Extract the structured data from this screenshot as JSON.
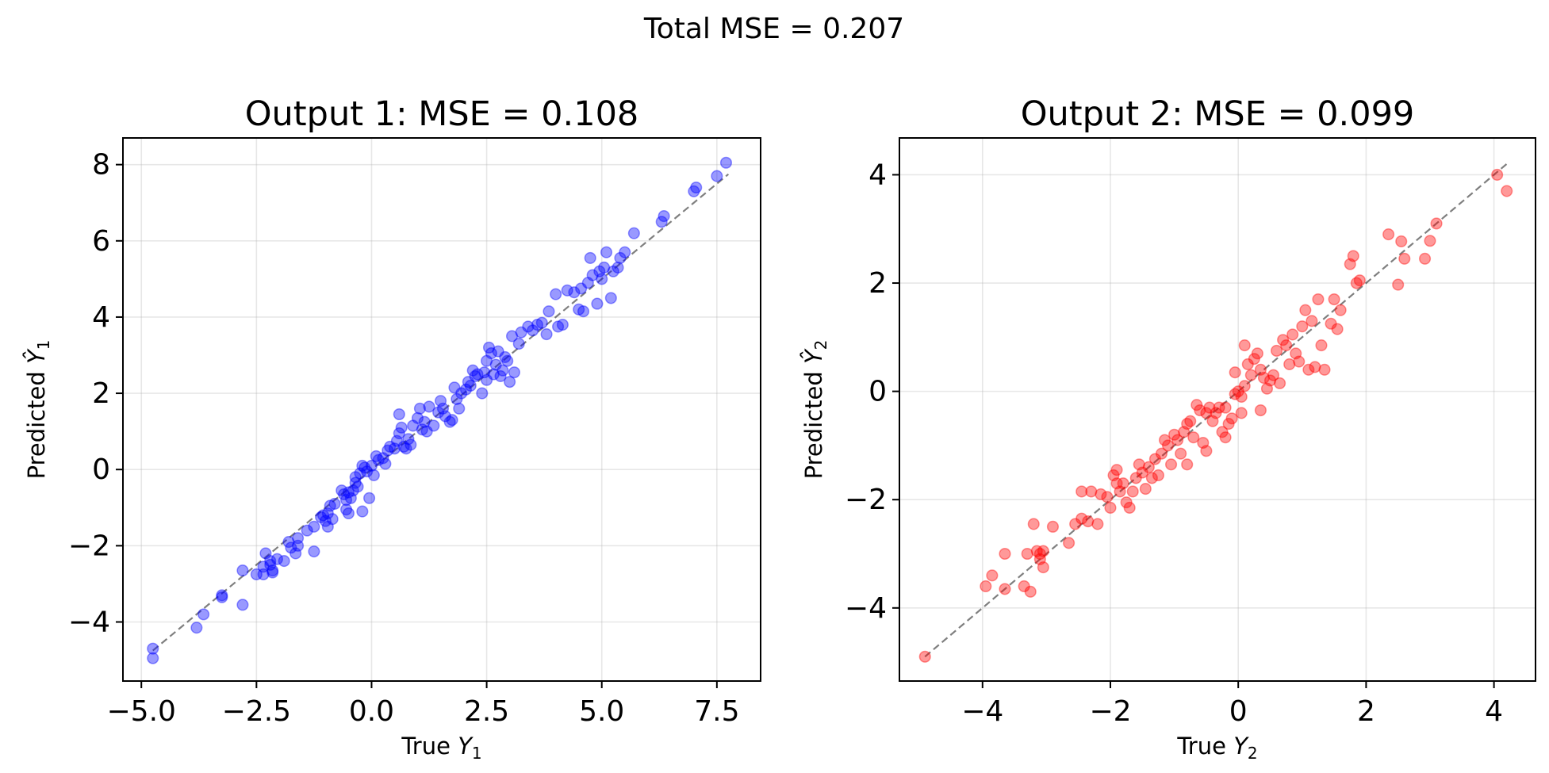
{
  "suptitle": "Total MSE = 0.207",
  "chart_data": [
    {
      "type": "scatter",
      "title": "Output 1: MSE = 0.108",
      "xlabel": "True Y1",
      "xlabel_main": "True ",
      "xlabel_var": "Y",
      "xlabel_sub": "1",
      "ylabel": "Predicted Ŷ1",
      "ylabel_main": "Predicted ",
      "ylabel_var": "Ŷ",
      "ylabel_sub": "1",
      "xlim": [
        -5.4,
        8.45
      ],
      "ylim": [
        -5.55,
        8.7
      ],
      "xticks": [
        -5.0,
        -2.5,
        0.0,
        2.5,
        5.0,
        7.5
      ],
      "xtick_labels": [
        "−5.0",
        "−2.5",
        "0.0",
        "2.5",
        "5.0",
        "7.5"
      ],
      "yticks": [
        -4,
        -2,
        0,
        2,
        4,
        6,
        8
      ],
      "ytick_labels": [
        "−4",
        "−2",
        "0",
        "2",
        "4",
        "6",
        "8"
      ],
      "grid": true,
      "color": "#0000ff",
      "alpha": 0.4,
      "reference_line": {
        "style": "dashed",
        "color": "#808080",
        "from": [
          -4.75,
          -4.75
        ],
        "to": [
          7.75,
          7.75
        ]
      },
      "points": [
        [
          -4.75,
          -4.7
        ],
        [
          -4.75,
          -4.95
        ],
        [
          -3.8,
          -4.15
        ],
        [
          -3.65,
          -3.8
        ],
        [
          -3.25,
          -3.35
        ],
        [
          -3.25,
          -3.3
        ],
        [
          -2.8,
          -3.55
        ],
        [
          -2.8,
          -2.65
        ],
        [
          -2.5,
          -2.75
        ],
        [
          -2.35,
          -2.75
        ],
        [
          -2.3,
          -2.2
        ],
        [
          -2.35,
          -2.55
        ],
        [
          -2.2,
          -2.5
        ],
        [
          -2.2,
          -2.4
        ],
        [
          -2.15,
          -2.65
        ],
        [
          -2.15,
          -2.7
        ],
        [
          -2.05,
          -2.35
        ],
        [
          -1.9,
          -2.4
        ],
        [
          -1.8,
          -1.9
        ],
        [
          -1.75,
          -2.05
        ],
        [
          -1.65,
          -2.2
        ],
        [
          -1.6,
          -2.0
        ],
        [
          -1.6,
          -1.8
        ],
        [
          -1.4,
          -1.6
        ],
        [
          -1.25,
          -1.5
        ],
        [
          -1.25,
          -2.15
        ],
        [
          -1.1,
          -1.25
        ],
        [
          -1.05,
          -1.2
        ],
        [
          -1.0,
          -1.35
        ],
        [
          -0.95,
          -1.15
        ],
        [
          -0.95,
          -1.5
        ],
        [
          -0.9,
          -0.95
        ],
        [
          -0.85,
          -1.3
        ],
        [
          -0.8,
          -0.9
        ],
        [
          -0.65,
          -0.55
        ],
        [
          -0.6,
          -0.65
        ],
        [
          -0.55,
          -0.8
        ],
        [
          -0.55,
          -1.05
        ],
        [
          -0.5,
          -0.6
        ],
        [
          -0.5,
          -1.15
        ],
        [
          -0.45,
          -0.75
        ],
        [
          -0.4,
          -0.55
        ],
        [
          -0.35,
          -0.35
        ],
        [
          -0.35,
          -0.2
        ],
        [
          -0.3,
          -0.45
        ],
        [
          -0.2,
          -1.1
        ],
        [
          -0.25,
          -0.1
        ],
        [
          -0.2,
          0.1
        ],
        [
          -0.15,
          0.05
        ],
        [
          -0.1,
          -0.05
        ],
        [
          -0.05,
          -0.75
        ],
        [
          0.0,
          0.1
        ],
        [
          0.05,
          -0.15
        ],
        [
          0.1,
          0.35
        ],
        [
          0.15,
          0.25
        ],
        [
          0.25,
          0.3
        ],
        [
          0.3,
          0.15
        ],
        [
          0.35,
          0.5
        ],
        [
          0.4,
          0.6
        ],
        [
          0.5,
          0.55
        ],
        [
          0.55,
          0.75
        ],
        [
          0.6,
          0.95
        ],
        [
          0.6,
          1.45
        ],
        [
          0.65,
          1.1
        ],
        [
          0.7,
          0.6
        ],
        [
          0.75,
          0.55
        ],
        [
          0.8,
          0.8
        ],
        [
          0.85,
          0.65
        ],
        [
          0.9,
          1.15
        ],
        [
          1.0,
          1.35
        ],
        [
          1.05,
          1.6
        ],
        [
          1.1,
          1.05
        ],
        [
          1.15,
          1.25
        ],
        [
          1.2,
          1.0
        ],
        [
          1.25,
          1.65
        ],
        [
          1.35,
          1.15
        ],
        [
          1.45,
          1.5
        ],
        [
          1.5,
          1.8
        ],
        [
          1.55,
          1.6
        ],
        [
          1.6,
          1.4
        ],
        [
          1.7,
          1.25
        ],
        [
          1.75,
          1.3
        ],
        [
          1.8,
          2.15
        ],
        [
          1.85,
          1.85
        ],
        [
          1.9,
          1.6
        ],
        [
          1.95,
          2.0
        ],
        [
          2.05,
          2.1
        ],
        [
          2.1,
          2.3
        ],
        [
          2.15,
          2.2
        ],
        [
          2.2,
          2.6
        ],
        [
          2.25,
          2.45
        ],
        [
          2.3,
          2.5
        ],
        [
          2.4,
          2.0
        ],
        [
          2.45,
          2.55
        ],
        [
          2.5,
          2.35
        ],
        [
          2.5,
          2.85
        ],
        [
          2.55,
          3.2
        ],
        [
          2.6,
          3.05
        ],
        [
          2.65,
          2.5
        ],
        [
          2.7,
          2.75
        ],
        [
          2.75,
          3.1
        ],
        [
          2.8,
          2.45
        ],
        [
          2.85,
          2.6
        ],
        [
          2.9,
          2.95
        ],
        [
          2.95,
          2.85
        ],
        [
          3.0,
          2.3
        ],
        [
          3.05,
          3.5
        ],
        [
          3.1,
          2.55
        ],
        [
          3.2,
          3.3
        ],
        [
          3.25,
          3.6
        ],
        [
          3.4,
          3.75
        ],
        [
          3.5,
          3.65
        ],
        [
          3.6,
          3.8
        ],
        [
          3.7,
          3.85
        ],
        [
          3.8,
          3.55
        ],
        [
          3.85,
          4.15
        ],
        [
          4.0,
          4.6
        ],
        [
          4.05,
          3.75
        ],
        [
          4.15,
          3.8
        ],
        [
          4.25,
          4.7
        ],
        [
          4.4,
          4.65
        ],
        [
          4.5,
          4.2
        ],
        [
          4.55,
          4.75
        ],
        [
          4.6,
          4.15
        ],
        [
          4.7,
          4.9
        ],
        [
          4.75,
          5.55
        ],
        [
          4.8,
          5.1
        ],
        [
          4.9,
          4.35
        ],
        [
          4.95,
          5.2
        ],
        [
          5.0,
          5.0
        ],
        [
          5.05,
          5.3
        ],
        [
          5.1,
          5.7
        ],
        [
          5.2,
          4.5
        ],
        [
          5.25,
          5.2
        ],
        [
          5.35,
          5.3
        ],
        [
          5.4,
          5.55
        ],
        [
          5.5,
          5.7
        ],
        [
          5.7,
          6.2
        ],
        [
          6.3,
          6.5
        ],
        [
          6.35,
          6.65
        ],
        [
          7.0,
          7.3
        ],
        [
          7.05,
          7.4
        ],
        [
          7.5,
          7.7
        ],
        [
          7.7,
          8.05
        ]
      ]
    },
    {
      "type": "scatter",
      "title": "Output 2: MSE = 0.099",
      "xlabel": "True Y2",
      "xlabel_main": "True ",
      "xlabel_var": "Y",
      "xlabel_sub": "2",
      "ylabel": "Predicted Ŷ2",
      "ylabel_main": "Predicted ",
      "ylabel_var": "Ŷ",
      "ylabel_sub": "2",
      "xlim": [
        -5.3,
        4.65
      ],
      "ylim": [
        -5.35,
        4.68
      ],
      "xticks": [
        -4,
        -2,
        0,
        2,
        4
      ],
      "xtick_labels": [
        "−4",
        "−2",
        "0",
        "2",
        "4"
      ],
      "yticks": [
        -4,
        -2,
        0,
        2,
        4
      ],
      "ytick_labels": [
        "−4",
        "−2",
        "0",
        "2",
        "4"
      ],
      "grid": true,
      "color": "#ff0000",
      "alpha": 0.4,
      "reference_line": {
        "style": "dashed",
        "color": "#808080",
        "from": [
          -4.9,
          -4.9
        ],
        "to": [
          4.2,
          4.2
        ]
      },
      "points": [
        [
          -4.9,
          -4.9
        ],
        [
          -3.95,
          -3.6
        ],
        [
          -3.85,
          -3.4
        ],
        [
          -3.65,
          -3.65
        ],
        [
          -3.65,
          -3.0
        ],
        [
          -3.35,
          -3.6
        ],
        [
          -3.3,
          -3.0
        ],
        [
          -3.25,
          -3.7
        ],
        [
          -3.2,
          -2.45
        ],
        [
          -3.15,
          -2.95
        ],
        [
          -3.1,
          -3.1
        ],
        [
          -3.1,
          -3.0
        ],
        [
          -3.05,
          -3.25
        ],
        [
          -3.05,
          -2.95
        ],
        [
          -2.9,
          -2.5
        ],
        [
          -2.65,
          -2.8
        ],
        [
          -2.55,
          -2.45
        ],
        [
          -2.45,
          -1.85
        ],
        [
          -2.45,
          -2.35
        ],
        [
          -2.35,
          -2.4
        ],
        [
          -2.3,
          -1.85
        ],
        [
          -2.2,
          -2.45
        ],
        [
          -2.15,
          -1.9
        ],
        [
          -2.05,
          -1.95
        ],
        [
          -2.0,
          -2.15
        ],
        [
          -1.95,
          -1.55
        ],
        [
          -1.9,
          -1.45
        ],
        [
          -1.9,
          -1.7
        ],
        [
          -1.85,
          -1.85
        ],
        [
          -1.8,
          -1.7
        ],
        [
          -1.75,
          -2.05
        ],
        [
          -1.7,
          -2.15
        ],
        [
          -1.65,
          -1.85
        ],
        [
          -1.6,
          -1.6
        ],
        [
          -1.55,
          -1.35
        ],
        [
          -1.5,
          -1.5
        ],
        [
          -1.45,
          -1.8
        ],
        [
          -1.4,
          -1.4
        ],
        [
          -1.35,
          -1.6
        ],
        [
          -1.3,
          -1.25
        ],
        [
          -1.25,
          -1.55
        ],
        [
          -1.2,
          -1.15
        ],
        [
          -1.15,
          -0.9
        ],
        [
          -1.1,
          -1.0
        ],
        [
          -1.05,
          -1.35
        ],
        [
          -1.0,
          -0.8
        ],
        [
          -0.95,
          -0.9
        ],
        [
          -0.9,
          -1.15
        ],
        [
          -0.85,
          -0.75
        ],
        [
          -0.8,
          -0.6
        ],
        [
          -0.8,
          -1.35
        ],
        [
          -0.75,
          -0.55
        ],
        [
          -0.7,
          -0.85
        ],
        [
          -0.65,
          -0.25
        ],
        [
          -0.6,
          -0.35
        ],
        [
          -0.55,
          -0.95
        ],
        [
          -0.5,
          -1.1
        ],
        [
          -0.5,
          -0.4
        ],
        [
          -0.45,
          -0.3
        ],
        [
          -0.4,
          -0.55
        ],
        [
          -0.35,
          -0.4
        ],
        [
          -0.3,
          -0.3
        ],
        [
          -0.25,
          -0.75
        ],
        [
          -0.2,
          -0.85
        ],
        [
          -0.2,
          -0.3
        ],
        [
          -0.15,
          -0.6
        ],
        [
          -0.1,
          -0.5
        ],
        [
          -0.05,
          0.35
        ],
        [
          -0.05,
          -0.05
        ],
        [
          0.0,
          0.0
        ],
        [
          0.05,
          -0.1
        ],
        [
          0.05,
          -0.4
        ],
        [
          0.1,
          0.1
        ],
        [
          0.1,
          0.85
        ],
        [
          0.15,
          0.5
        ],
        [
          0.2,
          0.3
        ],
        [
          0.25,
          0.6
        ],
        [
          0.3,
          0.7
        ],
        [
          0.35,
          -0.35
        ],
        [
          0.35,
          0.4
        ],
        [
          0.4,
          0.25
        ],
        [
          0.45,
          0.05
        ],
        [
          0.5,
          0.2
        ],
        [
          0.55,
          0.3
        ],
        [
          0.6,
          0.75
        ],
        [
          0.65,
          0.15
        ],
        [
          0.7,
          0.95
        ],
        [
          0.75,
          0.85
        ],
        [
          0.8,
          0.5
        ],
        [
          0.85,
          1.05
        ],
        [
          0.9,
          0.7
        ],
        [
          0.95,
          0.55
        ],
        [
          1.0,
          1.2
        ],
        [
          1.05,
          1.5
        ],
        [
          1.1,
          0.4
        ],
        [
          1.15,
          1.3
        ],
        [
          1.2,
          0.45
        ],
        [
          1.25,
          1.7
        ],
        [
          1.3,
          0.85
        ],
        [
          1.35,
          0.4
        ],
        [
          1.45,
          1.25
        ],
        [
          1.5,
          1.7
        ],
        [
          1.55,
          1.15
        ],
        [
          1.6,
          1.5
        ],
        [
          1.75,
          2.35
        ],
        [
          1.8,
          2.5
        ],
        [
          1.85,
          2.0
        ],
        [
          1.9,
          2.05
        ],
        [
          2.35,
          2.9
        ],
        [
          2.5,
          1.97
        ],
        [
          2.55,
          2.77
        ],
        [
          2.6,
          2.45
        ],
        [
          2.92,
          2.45
        ],
        [
          3.0,
          2.78
        ],
        [
          3.1,
          3.1
        ],
        [
          4.05,
          4.0
        ],
        [
          4.2,
          3.7
        ]
      ]
    }
  ]
}
